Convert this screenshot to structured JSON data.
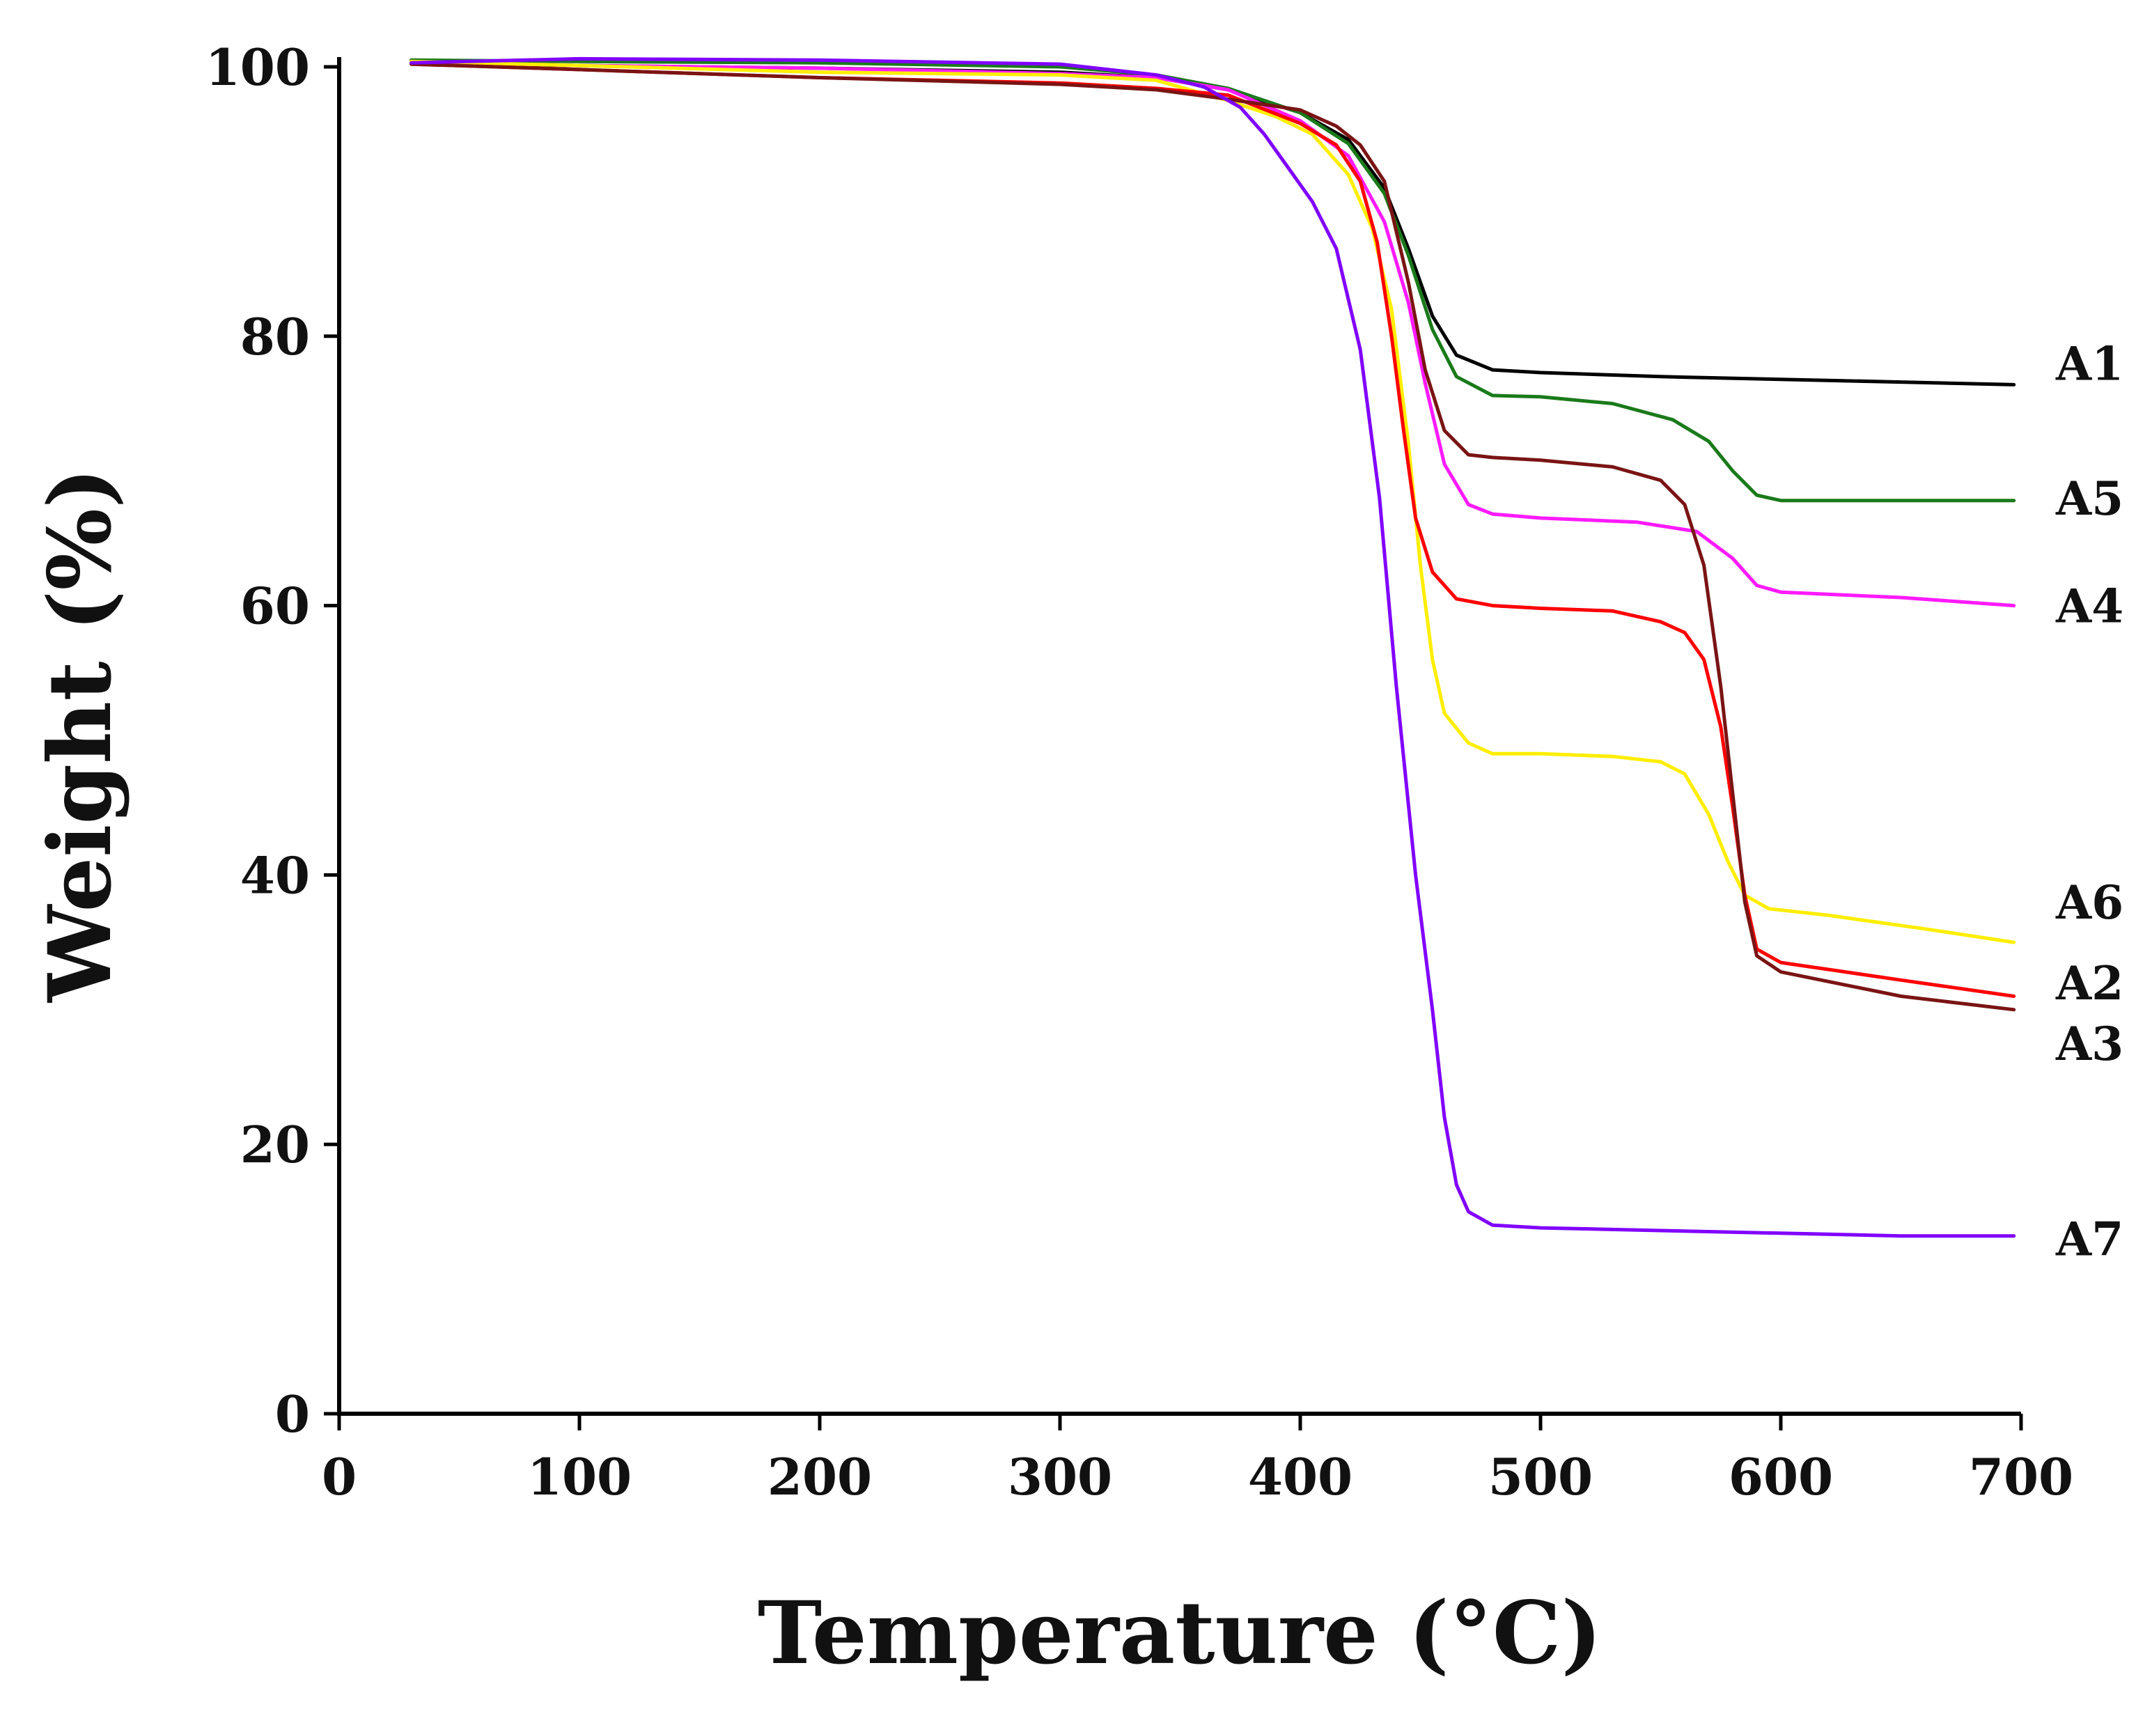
{
  "chart_data": {
    "type": "line",
    "title": "",
    "xlabel": "Temperature (°C)",
    "ylabel": "Weight (%)",
    "xlim": [
      0,
      700
    ],
    "ylim": [
      0,
      100
    ],
    "xticks": [
      0,
      100,
      200,
      300,
      400,
      500,
      600,
      700
    ],
    "yticks": [
      0,
      20,
      40,
      60,
      80,
      100
    ],
    "xtick_labels": [
      "0",
      "100",
      "200",
      "300",
      "400",
      "500",
      "600",
      "700"
    ],
    "ytick_labels": [
      "0",
      "20",
      "40",
      "60",
      "80",
      "100"
    ],
    "grid": false,
    "legend": "inline labels at right end of each curve",
    "series": [
      {
        "name": "A1",
        "color": "#000000",
        "label_y": 78,
        "points": [
          [
            30,
            100.3
          ],
          [
            100,
            100.1
          ],
          [
            200,
            99.9
          ],
          [
            300,
            99.6
          ],
          [
            340,
            99.2
          ],
          [
            370,
            98.3
          ],
          [
            400,
            96.6
          ],
          [
            420,
            94.6
          ],
          [
            435,
            91.0
          ],
          [
            445,
            86.5
          ],
          [
            455,
            81.5
          ],
          [
            465,
            78.6
          ],
          [
            480,
            77.5
          ],
          [
            500,
            77.3
          ],
          [
            550,
            77.0
          ],
          [
            600,
            76.8
          ],
          [
            650,
            76.6
          ],
          [
            697,
            76.4
          ]
        ]
      },
      {
        "name": "A5",
        "color": "#1a7a1a",
        "label_y": 68,
        "points": [
          [
            30,
            100.5
          ],
          [
            100,
            100.4
          ],
          [
            200,
            100.3
          ],
          [
            300,
            100.0
          ],
          [
            340,
            99.4
          ],
          [
            370,
            98.4
          ],
          [
            400,
            96.6
          ],
          [
            420,
            94.3
          ],
          [
            435,
            90.6
          ],
          [
            445,
            86.0
          ],
          [
            455,
            80.5
          ],
          [
            465,
            77.0
          ],
          [
            480,
            75.6
          ],
          [
            500,
            75.5
          ],
          [
            530,
            75.0
          ],
          [
            555,
            73.8
          ],
          [
            570,
            72.2
          ],
          [
            580,
            70.0
          ],
          [
            590,
            68.2
          ],
          [
            600,
            67.8
          ],
          [
            697,
            67.8
          ]
        ]
      },
      {
        "name": "A4",
        "color": "#ff1aff",
        "label_y": 60,
        "points": [
          [
            30,
            100.4
          ],
          [
            100,
            100.1
          ],
          [
            200,
            99.9
          ],
          [
            300,
            99.5
          ],
          [
            340,
            99.2
          ],
          [
            370,
            98.3
          ],
          [
            400,
            96.0
          ],
          [
            420,
            93.4
          ],
          [
            435,
            88.5
          ],
          [
            445,
            82.5
          ],
          [
            452,
            76.5
          ],
          [
            460,
            70.5
          ],
          [
            470,
            67.5
          ],
          [
            480,
            66.8
          ],
          [
            500,
            66.5
          ],
          [
            540,
            66.2
          ],
          [
            565,
            65.5
          ],
          [
            580,
            63.5
          ],
          [
            590,
            61.5
          ],
          [
            600,
            61.0
          ],
          [
            650,
            60.6
          ],
          [
            697,
            60.0
          ]
        ]
      },
      {
        "name": "A6",
        "color": "#ffee00",
        "label_y": 38,
        "points": [
          [
            30,
            100.4
          ],
          [
            100,
            100.1
          ],
          [
            200,
            99.6
          ],
          [
            300,
            99.4
          ],
          [
            340,
            99.0
          ],
          [
            370,
            97.5
          ],
          [
            390,
            96.3
          ],
          [
            405,
            95.0
          ],
          [
            420,
            92.0
          ],
          [
            430,
            88.0
          ],
          [
            438,
            82.0
          ],
          [
            445,
            72.0
          ],
          [
            450,
            63.0
          ],
          [
            455,
            56.0
          ],
          [
            460,
            52.0
          ],
          [
            470,
            49.8
          ],
          [
            480,
            49.0
          ],
          [
            500,
            49.0
          ],
          [
            530,
            48.8
          ],
          [
            550,
            48.4
          ],
          [
            560,
            47.5
          ],
          [
            570,
            44.5
          ],
          [
            578,
            41.0
          ],
          [
            585,
            38.5
          ],
          [
            595,
            37.5
          ],
          [
            620,
            37.0
          ],
          [
            660,
            36.0
          ],
          [
            697,
            35.0
          ]
        ]
      },
      {
        "name": "A2",
        "color": "#ff0000",
        "label_y": 32,
        "points": [
          [
            30,
            100.2
          ],
          [
            100,
            99.8
          ],
          [
            200,
            99.2
          ],
          [
            300,
            98.8
          ],
          [
            340,
            98.4
          ],
          [
            370,
            97.9
          ],
          [
            400,
            95.8
          ],
          [
            415,
            94.2
          ],
          [
            425,
            91.5
          ],
          [
            432,
            87.0
          ],
          [
            438,
            80.0
          ],
          [
            443,
            73.0
          ],
          [
            448,
            66.5
          ],
          [
            455,
            62.5
          ],
          [
            465,
            60.5
          ],
          [
            480,
            60.0
          ],
          [
            500,
            59.8
          ],
          [
            530,
            59.6
          ],
          [
            550,
            58.8
          ],
          [
            560,
            58.0
          ],
          [
            568,
            56.0
          ],
          [
            575,
            51.0
          ],
          [
            580,
            45.0
          ],
          [
            585,
            38.5
          ],
          [
            590,
            34.5
          ],
          [
            600,
            33.5
          ],
          [
            650,
            32.2
          ],
          [
            697,
            31.0
          ]
        ]
      },
      {
        "name": "A3",
        "color": "#7a1414",
        "label_y": 27.5,
        "points": [
          [
            30,
            100.2
          ],
          [
            100,
            99.8
          ],
          [
            200,
            99.2
          ],
          [
            300,
            98.7
          ],
          [
            340,
            98.3
          ],
          [
            370,
            97.6
          ],
          [
            400,
            96.8
          ],
          [
            415,
            95.6
          ],
          [
            425,
            94.2
          ],
          [
            435,
            91.5
          ],
          [
            445,
            84.0
          ],
          [
            452,
            77.5
          ],
          [
            460,
            73.0
          ],
          [
            470,
            71.2
          ],
          [
            480,
            71.0
          ],
          [
            500,
            70.8
          ],
          [
            530,
            70.3
          ],
          [
            550,
            69.3
          ],
          [
            560,
            67.5
          ],
          [
            568,
            63.0
          ],
          [
            575,
            54.0
          ],
          [
            580,
            46.0
          ],
          [
            585,
            38.0
          ],
          [
            590,
            34.0
          ],
          [
            600,
            32.8
          ],
          [
            650,
            31.0
          ],
          [
            697,
            30.0
          ]
        ]
      },
      {
        "name": "A7",
        "color": "#8000ff",
        "label_y": 13,
        "points": [
          [
            30,
            100.3
          ],
          [
            100,
            100.6
          ],
          [
            200,
            100.5
          ],
          [
            300,
            100.2
          ],
          [
            340,
            99.4
          ],
          [
            360,
            98.5
          ],
          [
            375,
            97.0
          ],
          [
            385,
            95.0
          ],
          [
            395,
            92.5
          ],
          [
            405,
            90.0
          ],
          [
            415,
            86.5
          ],
          [
            425,
            79.0
          ],
          [
            433,
            68.0
          ],
          [
            440,
            54.0
          ],
          [
            448,
            40.0
          ],
          [
            455,
            30.0
          ],
          [
            460,
            22.0
          ],
          [
            465,
            17.0
          ],
          [
            470,
            15.0
          ],
          [
            480,
            14.0
          ],
          [
            500,
            13.8
          ],
          [
            550,
            13.6
          ],
          [
            600,
            13.4
          ],
          [
            650,
            13.2
          ],
          [
            697,
            13.2
          ]
        ]
      }
    ]
  }
}
